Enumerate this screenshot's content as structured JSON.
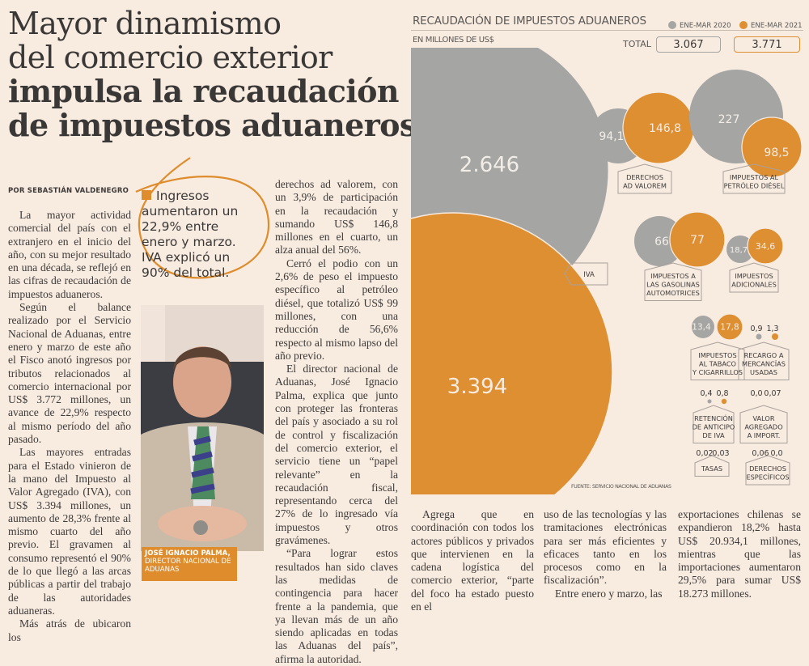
{
  "headline": {
    "line1": "Mayor dinamismo",
    "line2": "del comercio exterior",
    "line3": "impulsa la recaudación",
    "line4": "de impuestos aduaneros"
  },
  "byline": "POR SEBASTIÁN VALDENEGRO",
  "highlight": "Ingresos aumentaron un 22,9% entre enero y marzo. IVA explicó un 90% del total.",
  "photo_caption": {
    "name": "JOSÉ IGNACIO PALMA,",
    "role": "DIRECTOR NACIONAL DE ADUANAS"
  },
  "body": {
    "col1": [
      "La mayor actividad comercial del país con el extranjero en el inicio del año, con su mejor resultado en una década, se reflejó en las cifras de recaudación de impuestos aduaneros.",
      "Según el balance realizado por el Servicio Nacional de Aduanas, entre enero y marzo de este año el Fisco anotó ingresos por tributos relacionados al comercio internacional por US$ 3.772 millones, un avance de 22,9% respecto al mismo período del año pasado.",
      "Las mayores entradas para el Estado vinieron de la mano del Impuesto al Valor Agregado (IVA), con US$ 3.394 millones, un aumento de 28,3% frente al mismo cuarto del año previo. El gravamen al consumo representó el 90% de lo que llegó a las arcas públicas a partir del trabajo de las autoridades aduaneras.",
      "Más atrás de ubicaron los"
    ],
    "col2": [
      "derechos ad valorem, con un 3,9% de participación en la recaudación y sumando US$ 146,8 millones en el cuarto, un alza anual del 56%.",
      "Cerró el podio con un 2,6% de peso el impuesto específico al petróleo diésel, que totalizó US$ 99 millones, con una reducción de 56,6% respecto al mismo lapso del año previo.",
      "El director nacional de Aduanas, José Ignacio Palma, explica que junto con proteger las fronteras del país y asociado a su rol de control y fiscalización del comercio exterior, el servicio tiene un “papel relevante” en la recaudación fiscal, representando cerca del 27% de lo ingresado vía impuestos y otros gravámenes.",
      "“Para lograr estos resultados han sido claves las medidas de contingencia para hacer frente a la pandemia, que ya llevan más de un año siendo aplicadas en todas las Aduanas del país”, afirma la autoridad."
    ],
    "col3": [
      "Agrega que en coordinación con todos los actores públicos y privados que intervienen en la cadena logística del comercio exterior, “parte del foco ha estado puesto en el"
    ],
    "col4": [
      "uso de las tecnologías y las tramitaciones electrónicas para ser más eficientes y eficaces tanto en los procesos como en la fiscalización”.",
      "Entre enero y marzo, las"
    ],
    "col5": [
      "exportaciones chilenas se expandieron 18,2% hasta US$ 20.934,1 millones, mientras que las importaciones aumentaron 29,5% para sumar US$ 18.273 millones."
    ]
  },
  "chart_data": {
    "type": "bubble",
    "title": "RECAUDACIÓN DE IMPUESTOS ADUANEROS",
    "subtitle": "EN MILLONES DE US$",
    "legend": [
      "ENE-MAR 2020",
      "ENE-MAR 2021"
    ],
    "legend_position": "top-right",
    "colors": {
      "2020": "#a5a6a4",
      "2021": "#de8f31"
    },
    "total_label": "TOTAL",
    "totals": {
      "2020": "3.067",
      "2021": "3.771"
    },
    "categories": [
      {
        "label": "IVA",
        "v2020": 2646,
        "v2021": 3394,
        "t2020": "2.646",
        "t2021": "3.394"
      },
      {
        "label": "DERECHOS AD VALOREM",
        "v2020": 94.1,
        "v2021": 146.8,
        "t2020": "94,1",
        "t2021": "146,8"
      },
      {
        "label": "IMPUESTOS AL PETRÓLEO DIÉSEL",
        "v2020": 227,
        "v2021": 98.5,
        "t2020": "227",
        "t2021": "98,5"
      },
      {
        "label": "IMPUESTOS A LAS GASOLINAS AUTOMOTRICES",
        "v2020": 66,
        "v2021": 77,
        "t2020": "66",
        "t2021": "77"
      },
      {
        "label": "IMPUESTOS ADICIONALES",
        "v2020": 18.7,
        "v2021": 34.6,
        "t2020": "18,7",
        "t2021": "34,6"
      },
      {
        "label": "IMPUESTOS AL TABACO Y CIGARRILLOS",
        "v2020": 13.4,
        "v2021": 17.8,
        "t2020": "13,4",
        "t2021": "17,8"
      },
      {
        "label": "RECARGO A MERCANCÍAS USADAS",
        "v2020": 0.9,
        "v2021": 1.3,
        "t2020": "0,9",
        "t2021": "1,3"
      },
      {
        "label": "RETENCIÓN DE ANTICIPO DE IVA",
        "v2020": 0.4,
        "v2021": 0.8,
        "t2020": "0,4",
        "t2021": "0,8"
      },
      {
        "label": "VALOR AGREGADO A IMPORT.",
        "v2020": 0.0,
        "v2021": 0.07,
        "t2020": "0,0",
        "t2021": "0,07"
      },
      {
        "label": "TASAS",
        "v2020": 0.02,
        "v2021": 0.03,
        "t2020": "0,02",
        "t2021": "0,03"
      },
      {
        "label": "DERECHOS ESPECÍFICOS",
        "v2020": 0.06,
        "v2021": 0.0,
        "t2020": "0,06",
        "t2021": "0,0"
      }
    ],
    "source": "FUENTE: SERVICIO NACIONAL DE ADUANAS"
  }
}
